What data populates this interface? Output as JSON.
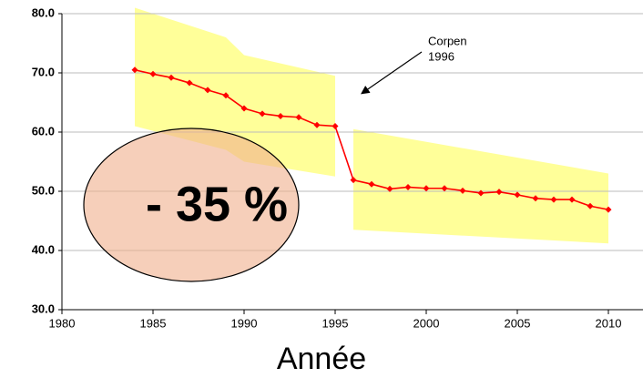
{
  "chart_data": {
    "type": "line",
    "x_label": "Année",
    "annotation": "- 35 %",
    "note": [
      "Corpen",
      "1996"
    ],
    "x": [
      1984,
      1985,
      1986,
      1987,
      1988,
      1989,
      1990,
      1991,
      1992,
      1993,
      1994,
      1995,
      1996,
      1997,
      1998,
      1999,
      2000,
      2001,
      2002,
      2003,
      2004,
      2005,
      2006,
      2007,
      2008,
      2009,
      2010
    ],
    "series": [
      {
        "color": "#ff0000",
        "values": [
          70.5,
          69.8,
          69.2,
          68.3,
          67.1,
          66.2,
          64.0,
          63.1,
          62.7,
          62.5,
          61.2,
          61.0,
          51.9,
          51.2,
          50.4,
          50.7,
          50.5,
          50.5,
          50.1,
          49.7,
          49.9,
          49.4,
          48.8,
          48.6,
          48.6,
          47.5,
          46.9
        ]
      }
    ],
    "bands": [
      {
        "color": "#ffff99",
        "x": [
          1984,
          1989,
          1990,
          1995
        ],
        "upper": [
          81,
          76,
          73,
          69.5
        ],
        "lower": [
          61,
          57,
          55,
          52.5
        ]
      },
      {
        "color": "#ffff99",
        "x": [
          1996,
          2010
        ],
        "upper": [
          60.5,
          53
        ],
        "lower": [
          43.5,
          41.2
        ]
      }
    ],
    "xlim": [
      1980,
      2012
    ],
    "ylim": [
      30,
      80
    ],
    "xticks": [
      1980,
      1985,
      1990,
      1995,
      2000,
      2005,
      2010
    ],
    "yticks": [
      {
        "value": 30,
        "label": "30.0"
      },
      {
        "value": 40,
        "label": "40.0"
      },
      {
        "value": 50,
        "label": "50.0"
      },
      {
        "value": 60,
        "label": "60.0"
      },
      {
        "value": 70,
        "label": "70.0"
      },
      {
        "value": 80,
        "label": "80.0"
      }
    ],
    "grid": true
  }
}
